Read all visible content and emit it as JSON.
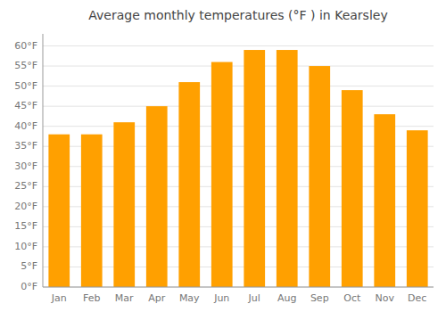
{
  "chart_data": {
    "type": "bar",
    "title": "Average monthly temperatures (°F ) in Kearsley",
    "categories": [
      "Jan",
      "Feb",
      "Mar",
      "Apr",
      "May",
      "Jun",
      "Jul",
      "Aug",
      "Sep",
      "Oct",
      "Nov",
      "Dec"
    ],
    "values": [
      38,
      38,
      41,
      45,
      51,
      56,
      59,
      59,
      55,
      49,
      43,
      39
    ],
    "color": "#FFA000",
    "ylim": [
      0,
      63
    ],
    "yticks": [
      {
        "value": 0,
        "label": "0°F"
      },
      {
        "value": 5,
        "label": "5°F"
      },
      {
        "value": 10,
        "label": "10°F"
      },
      {
        "value": 15,
        "label": "15°F"
      },
      {
        "value": 20,
        "label": "20°F"
      },
      {
        "value": 25,
        "label": "25°F"
      },
      {
        "value": 30,
        "label": "30°F"
      },
      {
        "value": 35,
        "label": "35°F"
      },
      {
        "value": 40,
        "label": "40°F"
      },
      {
        "value": 45,
        "label": "45°F"
      },
      {
        "value": 50,
        "label": "50°F"
      },
      {
        "value": 55,
        "label": "55°F"
      },
      {
        "value": 60,
        "label": "60°F"
      }
    ],
    "grid": true
  }
}
